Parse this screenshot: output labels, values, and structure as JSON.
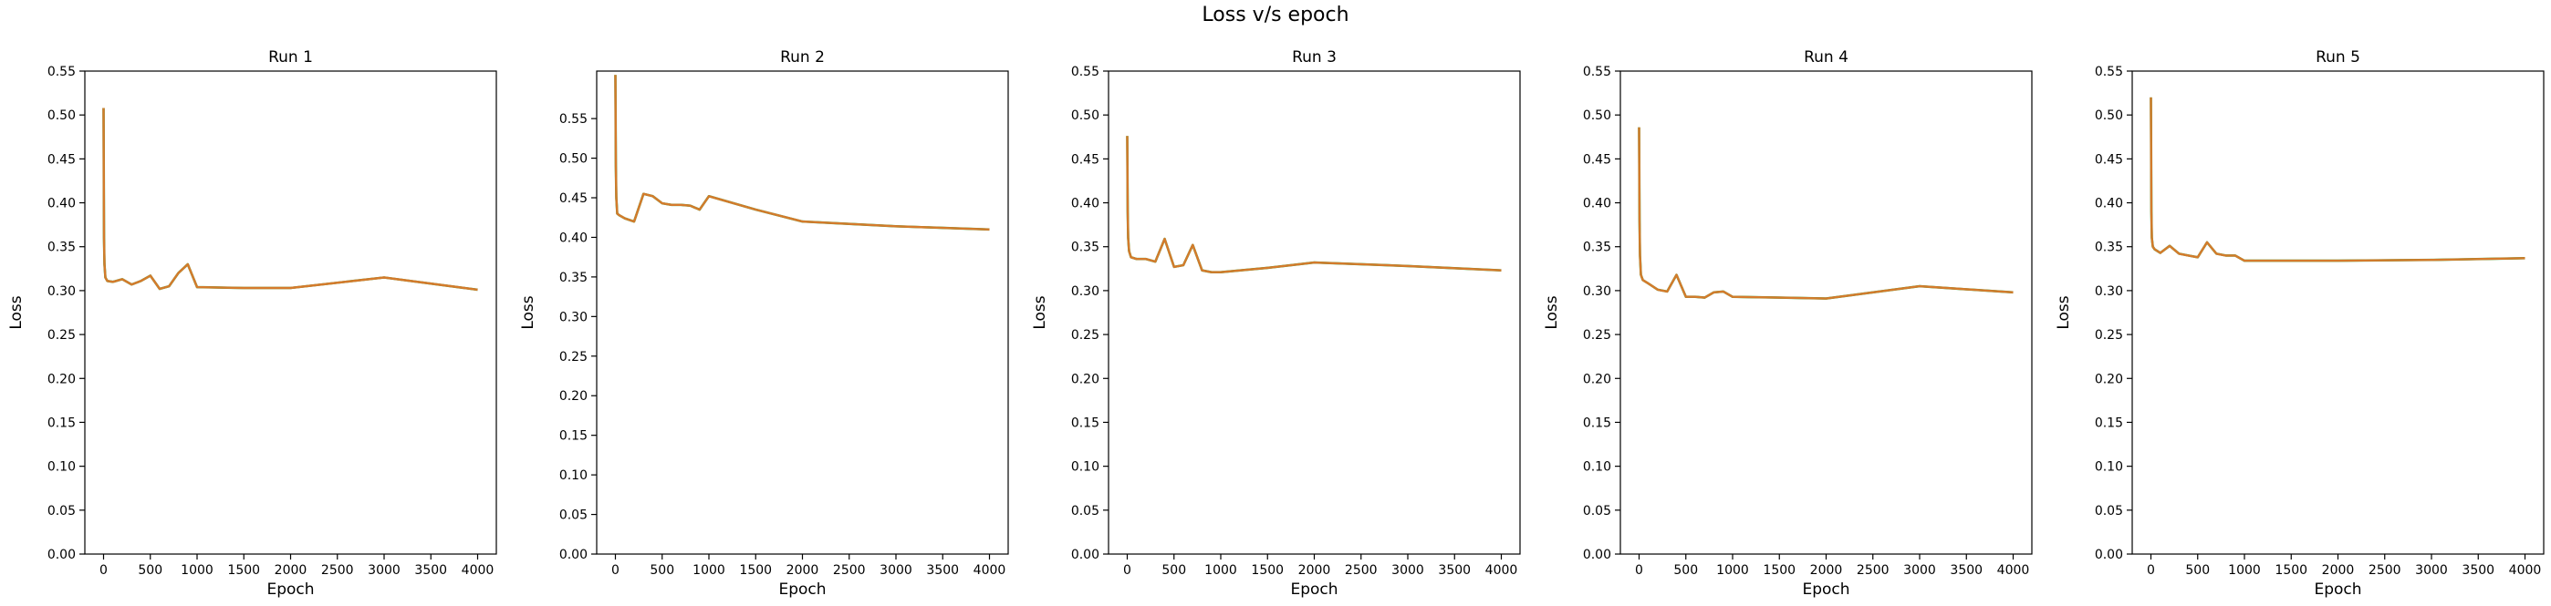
{
  "figure": {
    "suptitle": "Loss v/s epoch"
  },
  "colors": {
    "series_main": "#2ca02c",
    "series_overlay": "#d57a2c",
    "axes": "#000000"
  },
  "chart_data": [
    {
      "type": "line",
      "title": "Run 1",
      "xlabel": "Epoch",
      "ylabel": "Loss",
      "xlim": [
        -200,
        4200
      ],
      "ylim": [
        0,
        0.55
      ],
      "xticks": [
        0,
        500,
        1000,
        1500,
        2000,
        2500,
        3000,
        3500,
        4000
      ],
      "yticks": [
        0.0,
        0.05,
        0.1,
        0.15,
        0.2,
        0.25,
        0.3,
        0.35,
        0.4,
        0.45,
        0.5,
        0.55
      ],
      "grid": false,
      "series": [
        {
          "x": [
            0,
            5,
            10,
            20,
            40,
            100,
            200,
            300,
            400,
            500,
            600,
            700,
            800,
            900,
            1000,
            1500,
            2000,
            3000,
            4000
          ],
          "y": [
            0.508,
            0.36,
            0.33,
            0.315,
            0.311,
            0.31,
            0.313,
            0.307,
            0.311,
            0.317,
            0.302,
            0.305,
            0.32,
            0.33,
            0.304,
            0.303,
            0.303,
            0.315,
            0.301
          ]
        }
      ]
    },
    {
      "type": "line",
      "title": "Run 2",
      "xlabel": "Epoch",
      "ylabel": "Loss",
      "xlim": [
        -200,
        4200
      ],
      "ylim": [
        0,
        0.61
      ],
      "xticks": [
        0,
        500,
        1000,
        1500,
        2000,
        2500,
        3000,
        3500,
        4000
      ],
      "yticks": [
        0.0,
        0.05,
        0.1,
        0.15,
        0.2,
        0.25,
        0.3,
        0.35,
        0.4,
        0.45,
        0.5,
        0.55
      ],
      "grid": false,
      "series": [
        {
          "x": [
            0,
            5,
            10,
            20,
            40,
            100,
            200,
            300,
            400,
            500,
            600,
            700,
            800,
            900,
            1000,
            1500,
            2000,
            3000,
            4000
          ],
          "y": [
            0.605,
            0.49,
            0.45,
            0.43,
            0.428,
            0.424,
            0.42,
            0.455,
            0.452,
            0.443,
            0.441,
            0.441,
            0.44,
            0.435,
            0.452,
            0.435,
            0.42,
            0.414,
            0.41
          ]
        }
      ]
    },
    {
      "type": "line",
      "title": "Run 3",
      "xlabel": "Epoch",
      "ylabel": "Loss",
      "xlim": [
        -200,
        4200
      ],
      "ylim": [
        0,
        0.55
      ],
      "xticks": [
        0,
        500,
        1000,
        1500,
        2000,
        2500,
        3000,
        3500,
        4000
      ],
      "yticks": [
        0.0,
        0.05,
        0.1,
        0.15,
        0.2,
        0.25,
        0.3,
        0.35,
        0.4,
        0.45,
        0.5,
        0.55
      ],
      "grid": false,
      "series": [
        {
          "x": [
            0,
            5,
            10,
            20,
            40,
            100,
            200,
            300,
            400,
            500,
            600,
            700,
            800,
            900,
            1000,
            1500,
            2000,
            3000,
            4000
          ],
          "y": [
            0.476,
            0.39,
            0.36,
            0.345,
            0.338,
            0.336,
            0.336,
            0.333,
            0.359,
            0.327,
            0.329,
            0.352,
            0.323,
            0.321,
            0.321,
            0.326,
            0.332,
            0.328,
            0.323
          ]
        }
      ]
    },
    {
      "type": "line",
      "title": "Run 4",
      "xlabel": "Epoch",
      "ylabel": "Loss",
      "xlim": [
        -200,
        4200
      ],
      "ylim": [
        0,
        0.55
      ],
      "xticks": [
        0,
        500,
        1000,
        1500,
        2000,
        2500,
        3000,
        3500,
        4000
      ],
      "yticks": [
        0.0,
        0.05,
        0.1,
        0.15,
        0.2,
        0.25,
        0.3,
        0.35,
        0.4,
        0.45,
        0.5,
        0.55
      ],
      "grid": false,
      "series": [
        {
          "x": [
            0,
            5,
            10,
            20,
            40,
            100,
            200,
            300,
            400,
            500,
            600,
            700,
            800,
            900,
            1000,
            1500,
            2000,
            3000,
            4000
          ],
          "y": [
            0.486,
            0.38,
            0.34,
            0.318,
            0.312,
            0.308,
            0.301,
            0.299,
            0.318,
            0.293,
            0.293,
            0.292,
            0.298,
            0.299,
            0.293,
            0.292,
            0.291,
            0.305,
            0.298
          ]
        }
      ]
    },
    {
      "type": "line",
      "title": "Run 5",
      "xlabel": "Epoch",
      "ylabel": "Loss",
      "xlim": [
        -200,
        4200
      ],
      "ylim": [
        0,
        0.55
      ],
      "xticks": [
        0,
        500,
        1000,
        1500,
        2000,
        2500,
        3000,
        3500,
        4000
      ],
      "yticks": [
        0.0,
        0.05,
        0.1,
        0.15,
        0.2,
        0.25,
        0.3,
        0.35,
        0.4,
        0.45,
        0.5,
        0.55
      ],
      "grid": false,
      "series": [
        {
          "x": [
            0,
            5,
            10,
            20,
            40,
            100,
            200,
            300,
            400,
            500,
            600,
            700,
            800,
            900,
            1000,
            1500,
            2000,
            3000,
            4000
          ],
          "y": [
            0.52,
            0.39,
            0.36,
            0.35,
            0.347,
            0.343,
            0.351,
            0.342,
            0.34,
            0.338,
            0.355,
            0.342,
            0.34,
            0.34,
            0.334,
            0.334,
            0.334,
            0.335,
            0.337
          ]
        }
      ]
    }
  ]
}
